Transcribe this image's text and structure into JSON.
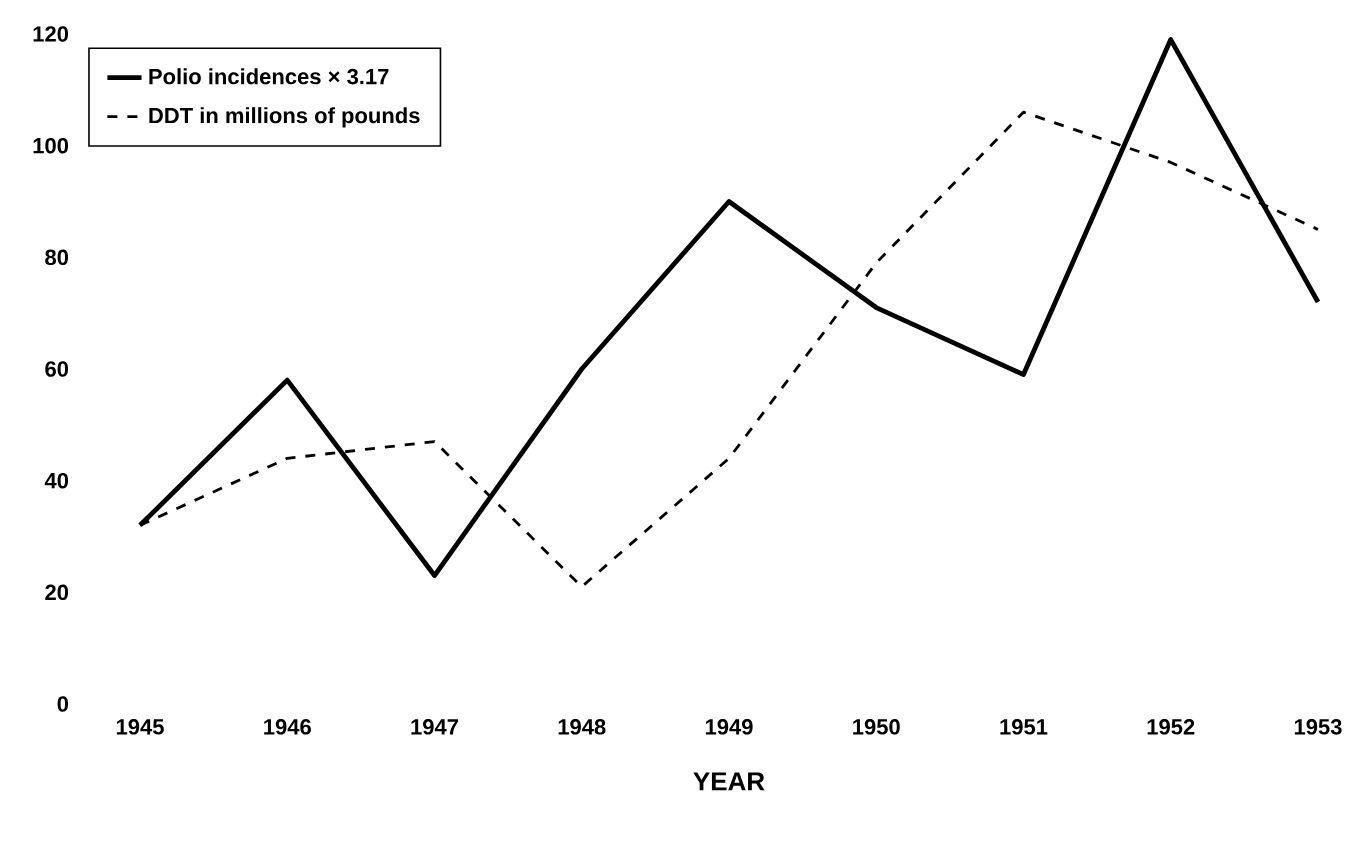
{
  "chart_data": {
    "type": "line",
    "xlabel": "YEAR",
    "categories": [
      "1945",
      "1946",
      "1947",
      "1948",
      "1949",
      "1950",
      "1951",
      "1952",
      "1953"
    ],
    "series": [
      {
        "name": "Polio incidences × 3.17",
        "color": "#000000",
        "line_style": "solid",
        "values": [
          32,
          58,
          23,
          60,
          90,
          71,
          59,
          119,
          72
        ]
      },
      {
        "name": "DDT in millions of pounds",
        "color": "#000000",
        "line_style": "dashed",
        "values": [
          32,
          44,
          47,
          21,
          44,
          79,
          106,
          97,
          85
        ]
      }
    ],
    "ylim": [
      0,
      120
    ],
    "yticks": [
      0,
      20,
      40,
      60,
      80,
      100,
      120
    ],
    "legend": "top left"
  }
}
